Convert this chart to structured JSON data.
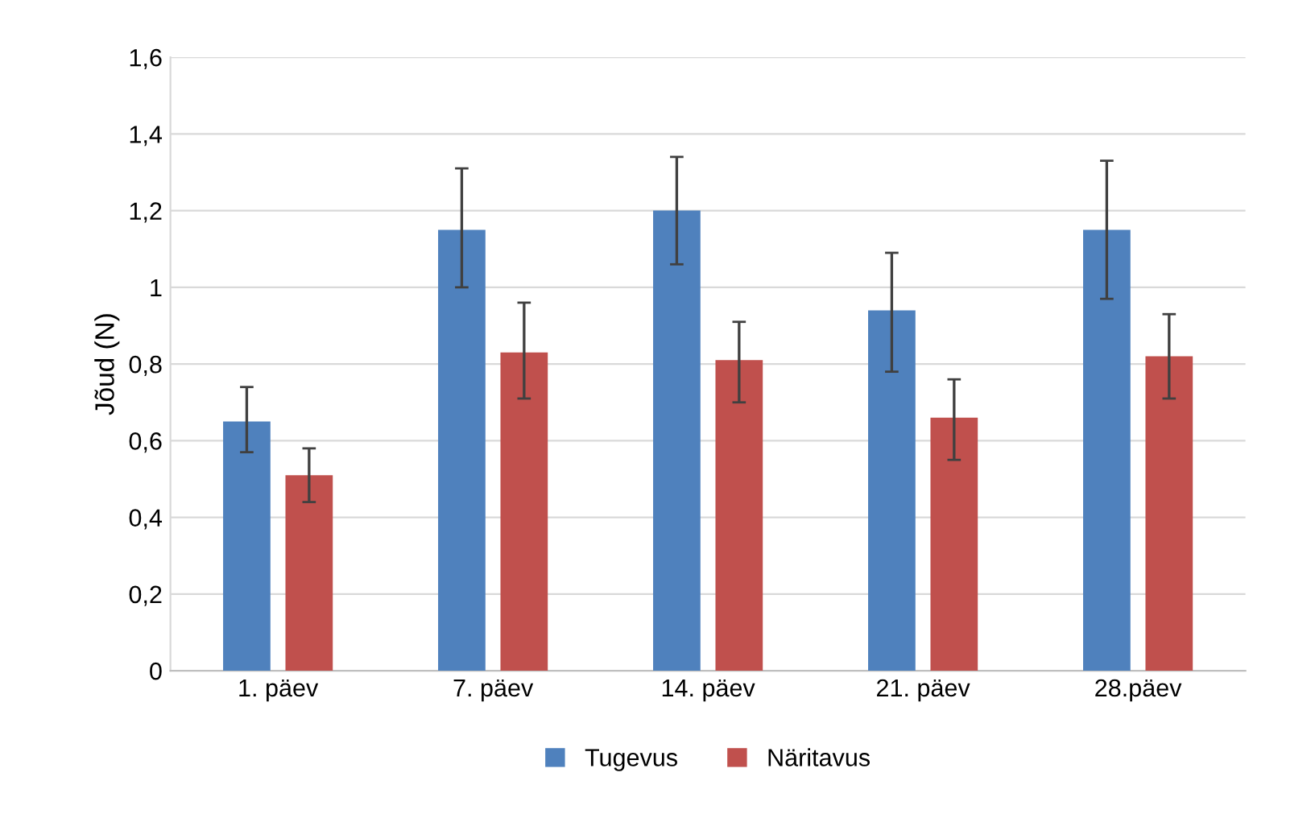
{
  "chart_data": {
    "type": "bar",
    "ylabel": "Jõud (N)",
    "categories": [
      "1. päev",
      "7. päev",
      "14. päev",
      "21. päev",
      "28.päev"
    ],
    "series": [
      {
        "name": "Tugevus",
        "color": "#4f81bd",
        "values": [
          0.65,
          1.15,
          1.2,
          0.94,
          1.15
        ],
        "errors": [
          [
            0.57,
            0.74
          ],
          [
            1.0,
            1.31
          ],
          [
            1.06,
            1.34
          ],
          [
            0.78,
            1.09
          ],
          [
            0.97,
            1.33
          ]
        ]
      },
      {
        "name": "Näritavus",
        "color": "#c0504d",
        "values": [
          0.51,
          0.83,
          0.81,
          0.66,
          0.82
        ],
        "errors": [
          [
            0.44,
            0.58
          ],
          [
            0.71,
            0.96
          ],
          [
            0.7,
            0.91
          ],
          [
            0.55,
            0.76
          ],
          [
            0.71,
            0.93
          ]
        ]
      }
    ],
    "ylim": [
      0,
      1.6
    ],
    "yticks": [
      {
        "value": 0,
        "label": "0"
      },
      {
        "value": 0.2,
        "label": "0,2"
      },
      {
        "value": 0.4,
        "label": "0,4"
      },
      {
        "value": 0.6,
        "label": "0,6"
      },
      {
        "value": 0.8,
        "label": "0,8"
      },
      {
        "value": 1,
        "label": "1"
      },
      {
        "value": 1.2,
        "label": "1,2"
      },
      {
        "value": 1.4,
        "label": "1,4"
      },
      {
        "value": 1.6,
        "label": "1,6"
      }
    ],
    "grid": "y",
    "legend": "bottom"
  }
}
